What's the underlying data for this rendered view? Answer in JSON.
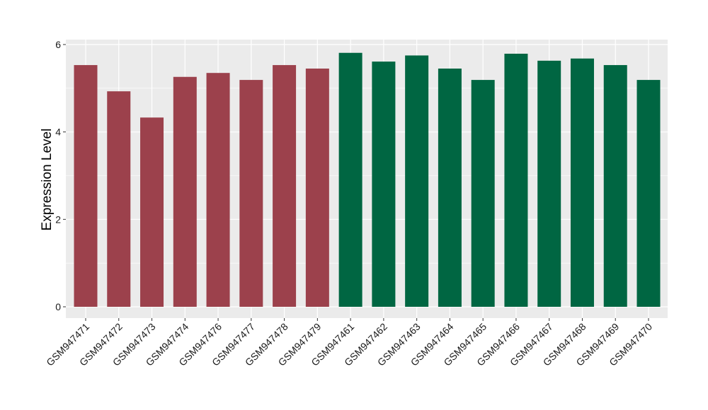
{
  "chart_data": {
    "type": "bar",
    "ylabel": "Expression Level",
    "ylim": [
      -0.25,
      6.0
    ],
    "yticks": [
      0,
      2,
      4,
      6
    ],
    "ytick_labels": [
      "0",
      "2",
      "4",
      "6"
    ],
    "grid": true,
    "legend": "none",
    "categories": [
      "GSM947471",
      "GSM947472",
      "GSM947473",
      "GSM947474",
      "GSM947476",
      "GSM947477",
      "GSM947478",
      "GSM947479",
      "GSM947461",
      "GSM947462",
      "GSM947463",
      "GSM947464",
      "GSM947465",
      "GSM947466",
      "GSM947467",
      "GSM947468",
      "GSM947469",
      "GSM947470"
    ],
    "values": [
      5.53,
      4.93,
      4.33,
      5.26,
      5.35,
      5.19,
      5.53,
      5.45,
      5.81,
      5.61,
      5.75,
      5.45,
      5.19,
      5.79,
      5.63,
      5.68,
      5.53,
      5.19
    ],
    "groups": [
      0,
      0,
      0,
      0,
      0,
      0,
      0,
      0,
      1,
      1,
      1,
      1,
      1,
      1,
      1,
      1,
      1,
      1
    ],
    "group_colors": [
      "#9c414c",
      "#006642"
    ],
    "panel_background": "#ebebeb",
    "gridline_color": "#ffffff"
  }
}
